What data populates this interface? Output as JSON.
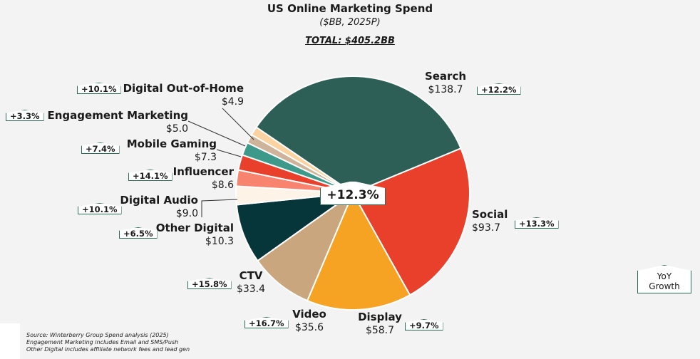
{
  "chart_data": {
    "type": "pie",
    "title": "US Online Marketing Spend",
    "subtitle": "($BB, 2025P)",
    "total_label": "TOTAL: $405.2BB",
    "center_growth": "+12.3%",
    "slices": [
      {
        "name": "Search",
        "value": 138.7,
        "value_label": "$138.7",
        "growth": "+12.2%",
        "color": "#2d5f57"
      },
      {
        "name": "Social",
        "value": 93.7,
        "value_label": "$93.7",
        "growth": "+13.3%",
        "color": "#e8402a"
      },
      {
        "name": "Display",
        "value": 58.7,
        "value_label": "$58.7",
        "growth": "+9.7%",
        "color": "#f6a324"
      },
      {
        "name": "Video",
        "value": 35.6,
        "value_label": "$35.6",
        "growth": "+16.7%",
        "color": "#c9a67d"
      },
      {
        "name": "CTV",
        "value": 33.4,
        "value_label": "$33.4",
        "growth": "+15.8%",
        "color": "#07363a"
      },
      {
        "name": "Other Digital",
        "value": 10.3,
        "value_label": "$10.3",
        "growth": "+6.5%",
        "color": "#fdf3e6"
      },
      {
        "name": "Digital Audio",
        "value": 9.0,
        "value_label": "$9.0",
        "growth": "+10.1%",
        "color": "#f88470"
      },
      {
        "name": "Influencer",
        "value": 8.6,
        "value_label": "$8.6",
        "growth": "+14.1%",
        "color": "#e8402a"
      },
      {
        "name": "Mobile Gaming",
        "value": 7.3,
        "value_label": "$7.3",
        "growth": "+7.4%",
        "color": "#3d9a8a"
      },
      {
        "name": "Engagement Marketing",
        "value": 5.0,
        "value_label": "$5.0",
        "growth": "+3.3%",
        "color": "#cdb39a"
      },
      {
        "name": "Digital Out-of-Home",
        "value": 4.9,
        "value_label": "$4.9",
        "growth": "+10.1%",
        "color": "#fad3a0"
      }
    ]
  },
  "legend": {
    "line1": "YoY",
    "line2": "Growth"
  },
  "footnotes": [
    "Source: Winterberry Group Spend analysis (2025)",
    "Engagement Marketing includes Email and SMS/Push",
    "Other Digital includes affiliate network fees and lead gen"
  ]
}
